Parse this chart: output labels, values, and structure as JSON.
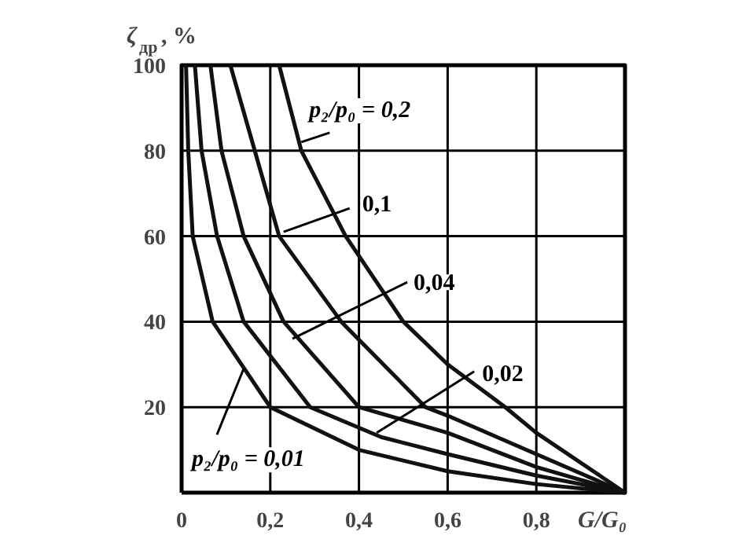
{
  "chart_data": {
    "type": "line",
    "xlabel": "G/G₀",
    "ylabel": "ζ$_{др}$, %",
    "xlim": [
      0,
      1
    ],
    "ylim": [
      0,
      100
    ],
    "xticks": [
      {
        "value": 0,
        "label": "0"
      },
      {
        "value": 0.2,
        "label": "0,2"
      },
      {
        "value": 0.4,
        "label": "0,4"
      },
      {
        "value": 0.6,
        "label": "0,6"
      },
      {
        "value": 0.8,
        "label": "0,8"
      },
      {
        "value": 1,
        "label": null
      }
    ],
    "yticks": [
      {
        "value": 0,
        "label": null
      },
      20,
      40,
      60,
      80,
      100
    ],
    "grid": true,
    "marker": "none",
    "line_style": "solid",
    "series": [
      {
        "color": "#111111",
        "x": [
          0.22,
          0.27,
          0.37,
          0.5,
          0.6,
          0.73,
          0.8,
          1
        ],
        "values": [
          100,
          80,
          60,
          40,
          30,
          20,
          14,
          0
        ]
      },
      {
        "color": "#111111",
        "x": [
          0.11,
          0.165,
          0.22,
          0.36,
          0.55,
          0.6,
          0.8,
          1
        ],
        "values": [
          100,
          80,
          60,
          40,
          20,
          18,
          9,
          0
        ]
      },
      {
        "color": "#111111",
        "x": [
          0.065,
          0.09,
          0.14,
          0.23,
          0.4,
          0.6,
          0.8,
          1
        ],
        "values": [
          100,
          80,
          60,
          40,
          20,
          14,
          6,
          0
        ]
      },
      {
        "color": "#111111",
        "x": [
          0.03,
          0.045,
          0.08,
          0.14,
          0.29,
          0.45,
          0.6,
          0.8,
          1
        ],
        "values": [
          100,
          80,
          60,
          40,
          20,
          13,
          9,
          4,
          0
        ]
      },
      {
        "color": "#111111",
        "x": [
          0.01,
          0.015,
          0.025,
          0.07,
          0.2,
          0.4,
          0.6,
          0.8,
          1
        ],
        "values": [
          100,
          80,
          60,
          40,
          20,
          10,
          5,
          2,
          0
        ]
      }
    ],
    "annotations": [
      {
        "text": "p₂/p₀ = 0,2",
        "x": 0.27,
        "y": 82
      },
      {
        "text": "0,1",
        "x": 0.23,
        "y": 61
      },
      {
        "text": "0,04",
        "x": 0.25,
        "y": 36
      },
      {
        "text": "0,02",
        "x": 0.44,
        "y": 14
      },
      {
        "text": "p₂/p₀ = 0,01",
        "x": 0.14,
        "y": 29
      }
    ]
  }
}
